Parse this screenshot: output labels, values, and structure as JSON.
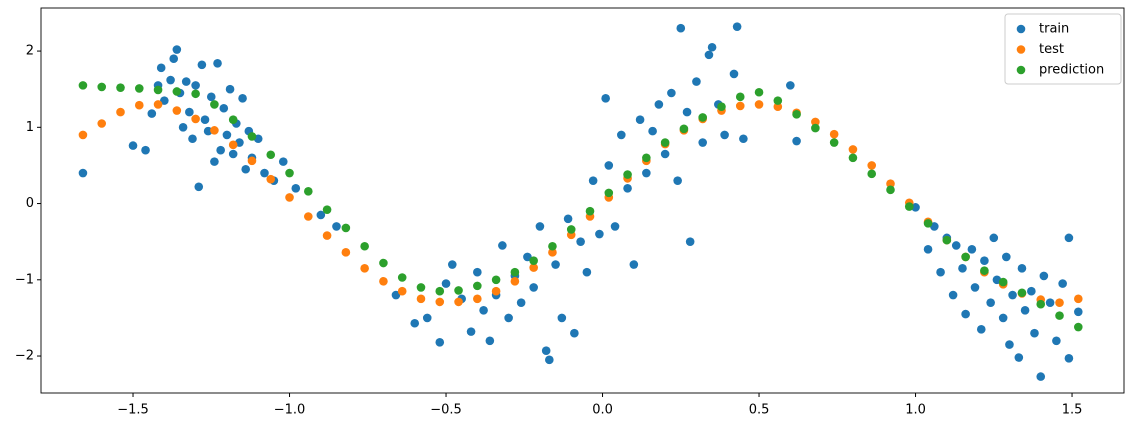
{
  "chart_data": {
    "type": "scatter",
    "xlim": [
      -1.794,
      1.666
    ],
    "ylim": [
      -2.485,
      2.565
    ],
    "xticks": [
      {
        "value": -1.5,
        "label": "−1.5"
      },
      {
        "value": -1,
        "label": "−1.0"
      },
      {
        "value": -0.5,
        "label": "−0.5"
      },
      {
        "value": 0,
        "label": "0.0"
      },
      {
        "value": 0.5,
        "label": "0.5"
      },
      {
        "value": 1,
        "label": "1.0"
      },
      {
        "value": 1.5,
        "label": "1.5"
      }
    ],
    "yticks": [
      {
        "value": -2,
        "label": "−2"
      },
      {
        "value": -1,
        "label": "−1"
      },
      0,
      1,
      2
    ],
    "grid": false,
    "legend": "upper right",
    "series": [
      {
        "name": "train",
        "color": "#1f77b4",
        "x": [
          -1.66,
          -1.5,
          -1.46,
          -1.44,
          -1.42,
          -1.41,
          -1.4,
          -1.38,
          -1.37,
          -1.36,
          -1.35,
          -1.34,
          -1.33,
          -1.32,
          -1.31,
          -1.3,
          -1.29,
          -1.28,
          -1.27,
          -1.26,
          -1.25,
          -1.24,
          -1.23,
          -1.22,
          -1.21,
          -1.2,
          -1.19,
          -1.18,
          -1.17,
          -1.16,
          -1.15,
          -1.14,
          -1.13,
          -1.12,
          -1.1,
          -1.08,
          -1.05,
          -1.02,
          -0.98,
          -0.9,
          -0.85,
          -0.66,
          -0.6,
          -0.56,
          -0.52,
          -0.5,
          -0.48,
          -0.45,
          -0.42,
          -0.4,
          -0.38,
          -0.36,
          -0.34,
          -0.32,
          -0.3,
          -0.28,
          -0.26,
          -0.24,
          -0.22,
          -0.2,
          -0.18,
          -0.17,
          -0.15,
          -0.13,
          -0.11,
          -0.09,
          -0.07,
          -0.05,
          -0.03,
          -0.01,
          0.01,
          0.02,
          0.04,
          0.06,
          0.08,
          0.1,
          0.12,
          0.14,
          0.16,
          0.18,
          0.2,
          0.22,
          0.24,
          0.25,
          0.27,
          0.28,
          0.3,
          0.32,
          0.34,
          0.35,
          0.37,
          0.39,
          0.42,
          0.43,
          0.45,
          0.6,
          0.62,
          1.0,
          1.04,
          1.06,
          1.08,
          1.1,
          1.12,
          1.13,
          1.15,
          1.16,
          1.18,
          1.19,
          1.21,
          1.22,
          1.24,
          1.25,
          1.26,
          1.28,
          1.29,
          1.3,
          1.31,
          1.33,
          1.34,
          1.35,
          1.37,
          1.38,
          1.4,
          1.41,
          1.43,
          1.45,
          1.47,
          1.49,
          1.49,
          1.52
        ],
        "values": [
          0.4,
          0.76,
          0.7,
          1.18,
          1.55,
          1.78,
          1.35,
          1.62,
          1.9,
          2.02,
          1.45,
          1.0,
          1.6,
          1.2,
          0.85,
          1.55,
          0.22,
          1.82,
          1.1,
          0.95,
          1.4,
          0.55,
          1.84,
          0.7,
          1.25,
          0.9,
          1.5,
          0.65,
          1.05,
          0.8,
          1.38,
          0.45,
          0.95,
          0.6,
          0.85,
          0.4,
          0.3,
          0.55,
          0.2,
          -0.15,
          -0.3,
          -1.2,
          -1.57,
          -1.5,
          -1.82,
          -1.05,
          -0.8,
          -1.25,
          -1.68,
          -0.9,
          -1.4,
          -1.8,
          -1.2,
          -0.55,
          -1.5,
          -0.95,
          -1.3,
          -0.7,
          -1.1,
          -0.3,
          -1.93,
          -2.05,
          -0.8,
          -1.5,
          -0.2,
          -1.7,
          -0.5,
          -0.9,
          0.3,
          -0.4,
          1.38,
          0.5,
          -0.3,
          0.9,
          0.2,
          -0.8,
          1.1,
          0.4,
          0.95,
          1.3,
          0.65,
          1.45,
          0.3,
          2.3,
          1.2,
          -0.5,
          1.6,
          0.8,
          1.95,
          2.05,
          1.3,
          0.9,
          1.7,
          2.32,
          0.85,
          1.55,
          0.82,
          -0.05,
          -0.6,
          -0.3,
          -0.9,
          -0.45,
          -1.2,
          -0.55,
          -0.85,
          -1.45,
          -0.6,
          -1.1,
          -1.65,
          -0.75,
          -1.3,
          -0.45,
          -1.0,
          -1.5,
          -0.7,
          -1.85,
          -1.2,
          -2.02,
          -0.85,
          -1.4,
          -1.15,
          -1.7,
          -2.27,
          -0.95,
          -1.3,
          -1.8,
          -1.05,
          -2.03,
          -0.45,
          -1.42
        ]
      },
      {
        "name": "test",
        "color": "#ff7f0e",
        "x": [
          -1.66,
          -1.6,
          -1.54,
          -1.48,
          -1.42,
          -1.36,
          -1.3,
          -1.24,
          -1.18,
          -1.12,
          -1.06,
          -1.0,
          -0.94,
          -0.88,
          -0.82,
          -0.76,
          -0.7,
          -0.64,
          -0.58,
          -0.52,
          -0.46,
          -0.4,
          -0.34,
          -0.28,
          -0.22,
          -0.16,
          -0.1,
          -0.04,
          0.02,
          0.08,
          0.14,
          0.2,
          0.26,
          0.32,
          0.38,
          0.44,
          0.5,
          0.56,
          0.62,
          0.68,
          0.74,
          0.8,
          0.86,
          0.92,
          0.98,
          1.04,
          1.1,
          1.16,
          1.22,
          1.28,
          1.34,
          1.4,
          1.46,
          1.52
        ],
        "values": [
          0.9,
          1.05,
          1.2,
          1.29,
          1.3,
          1.22,
          1.11,
          0.96,
          0.77,
          0.56,
          0.32,
          0.08,
          -0.17,
          -0.42,
          -0.64,
          -0.85,
          -1.02,
          -1.15,
          -1.25,
          -1.29,
          -1.29,
          -1.25,
          -1.15,
          -1.02,
          -0.84,
          -0.64,
          -0.41,
          -0.17,
          0.08,
          0.33,
          0.56,
          0.78,
          0.96,
          1.11,
          1.22,
          1.28,
          1.3,
          1.27,
          1.19,
          1.07,
          0.91,
          0.71,
          0.5,
          0.26,
          0.01,
          -0.24,
          -0.48,
          -0.7,
          -0.9,
          -1.06,
          -1.18,
          -1.26,
          -1.3,
          -1.25
        ]
      },
      {
        "name": "prediction",
        "color": "#2ca02c",
        "x": [
          -1.66,
          -1.6,
          -1.54,
          -1.48,
          -1.42,
          -1.36,
          -1.3,
          -1.24,
          -1.18,
          -1.12,
          -1.06,
          -1.0,
          -0.94,
          -0.88,
          -0.82,
          -0.76,
          -0.7,
          -0.64,
          -0.58,
          -0.52,
          -0.46,
          -0.4,
          -0.34,
          -0.28,
          -0.22,
          -0.16,
          -0.1,
          -0.04,
          0.02,
          0.08,
          0.14,
          0.2,
          0.26,
          0.32,
          0.38,
          0.44,
          0.5,
          0.56,
          0.62,
          0.68,
          0.74,
          0.8,
          0.86,
          0.92,
          0.98,
          1.04,
          1.1,
          1.16,
          1.22,
          1.28,
          1.34,
          1.4,
          1.46,
          1.52
        ],
        "values": [
          1.55,
          1.53,
          1.52,
          1.51,
          1.49,
          1.47,
          1.44,
          1.3,
          1.1,
          0.88,
          0.64,
          0.4,
          0.16,
          -0.08,
          -0.32,
          -0.56,
          -0.78,
          -0.97,
          -1.1,
          -1.15,
          -1.14,
          -1.08,
          -1.0,
          -0.9,
          -0.75,
          -0.56,
          -0.34,
          -0.1,
          0.14,
          0.38,
          0.6,
          0.8,
          0.98,
          1.13,
          1.27,
          1.4,
          1.46,
          1.35,
          1.17,
          0.99,
          0.8,
          0.6,
          0.39,
          0.18,
          -0.04,
          -0.26,
          -0.48,
          -0.7,
          -0.88,
          -1.03,
          -1.17,
          -1.32,
          -1.47,
          -1.62
        ]
      }
    ]
  }
}
